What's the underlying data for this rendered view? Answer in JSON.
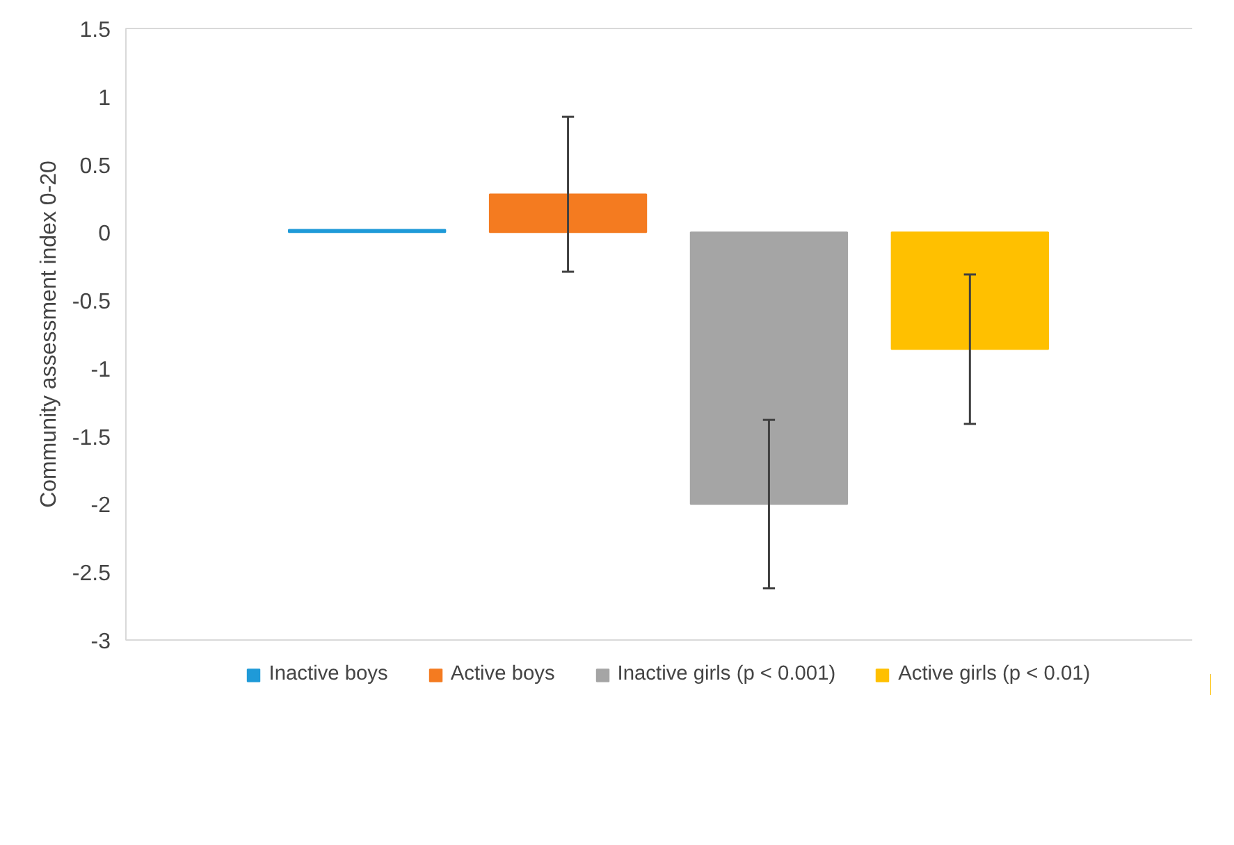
{
  "chart_data": {
    "type": "bar",
    "ylabel": "Community assessment index 0-20",
    "categories": [
      null
    ],
    "series": [
      {
        "name": "Inactive boys",
        "color": "#1f9ad8",
        "values": [
          0.02
        ],
        "errors": [
          null
        ]
      },
      {
        "name": "Active boys",
        "color": "#f47b20",
        "values": [
          0.28
        ],
        "errors": [
          0.57
        ]
      },
      {
        "name": "Inactive girls (p < 0.001)",
        "color": "#a5a5a5",
        "values": [
          -2.0
        ],
        "errors": [
          0.62
        ]
      },
      {
        "name": "Active girls (p < 0.01)",
        "color": "#ffc000",
        "values": [
          -0.86
        ],
        "errors": [
          0.55
        ]
      }
    ],
    "ylim": [
      -3,
      1.5
    ],
    "yticks": [
      -3,
      -2.5,
      -2,
      -1.5,
      -1,
      -0.5,
      0,
      0.5,
      1,
      1.5
    ],
    "grid": false,
    "legend": "bottom"
  }
}
